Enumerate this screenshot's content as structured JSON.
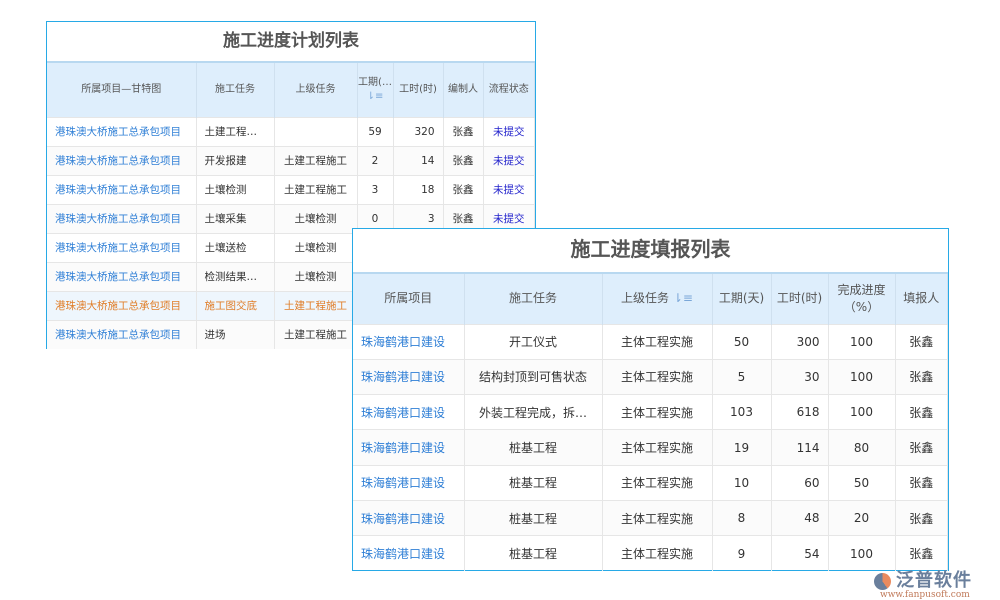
{
  "plan": {
    "title": "施工进度计划列表",
    "headers": [
      "所属项目—甘特图",
      "施工任务",
      "上级任务",
      "工期(…",
      "工时(时)",
      "编制人",
      "流程状态"
    ],
    "rows": [
      [
        "港珠澳大桥施工总承包项目",
        "土建工程施工",
        "",
        "59",
        "320",
        "张鑫",
        "未提交"
      ],
      [
        "港珠澳大桥施工总承包项目",
        "开发报建",
        "土建工程施工",
        "2",
        "14",
        "张鑫",
        "未提交"
      ],
      [
        "港珠澳大桥施工总承包项目",
        "土壤检测",
        "土建工程施工",
        "3",
        "18",
        "张鑫",
        "未提交"
      ],
      [
        "港珠澳大桥施工总承包项目",
        "土壤采集",
        "土壤检测",
        "0",
        "3",
        "张鑫",
        "未提交"
      ],
      [
        "港珠澳大桥施工总承包项目",
        "土壤送检",
        "土壤检测",
        "",
        "",
        "",
        ""
      ],
      [
        "港珠澳大桥施工总承包项目",
        "检测结果存底",
        "土壤检测",
        "",
        "",
        "",
        ""
      ],
      [
        "港珠澳大桥施工总承包项目",
        "施工图交底",
        "土建工程施工",
        "",
        "",
        "",
        ""
      ],
      [
        "港珠澳大桥施工总承包项目",
        "进场",
        "土建工程施工",
        "",
        "",
        "",
        ""
      ]
    ]
  },
  "report": {
    "title": "施工进度填报列表",
    "headers": [
      "所属项目",
      "施工任务",
      "上级任务",
      "工期(天)",
      "工时(时)",
      "完成进度（%）",
      "填报人"
    ],
    "rows": [
      [
        "珠海鹤港口建设",
        "开工仪式",
        "主体工程实施",
        "50",
        "300",
        "100",
        "张鑫"
      ],
      [
        "珠海鹤港口建设",
        "结构封顶到可售状态",
        "主体工程实施",
        "5",
        "30",
        "100",
        "张鑫"
      ],
      [
        "珠海鹤港口建设",
        "外装工程完成，拆…",
        "主体工程实施",
        "103",
        "618",
        "100",
        "张鑫"
      ],
      [
        "珠海鹤港口建设",
        "桩基工程",
        "主体工程实施",
        "19",
        "114",
        "80",
        "张鑫"
      ],
      [
        "珠海鹤港口建设",
        "桩基工程",
        "主体工程实施",
        "10",
        "60",
        "50",
        "张鑫"
      ],
      [
        "珠海鹤港口建设",
        "桩基工程",
        "主体工程实施",
        "8",
        "48",
        "20",
        "张鑫"
      ],
      [
        "珠海鹤港口建设",
        "桩基工程",
        "主体工程实施",
        "9",
        "54",
        "100",
        "张鑫"
      ]
    ]
  },
  "logo": {
    "name": "泛普软件",
    "url": "www.fanpusoft.com"
  }
}
